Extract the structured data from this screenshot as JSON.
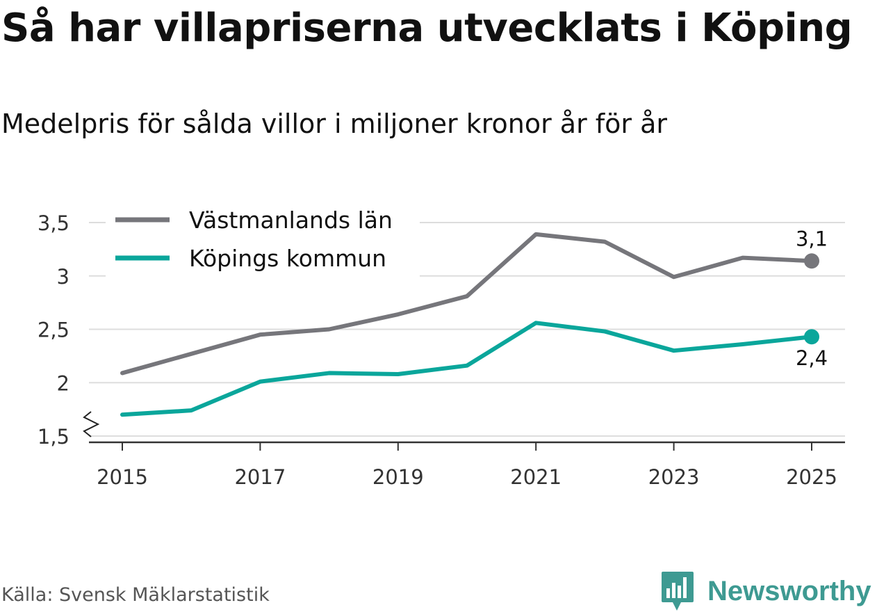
{
  "title": "Så har villapriserna utvecklats i Köping",
  "subtitle": "Medelpris för sålda villor i miljoner kronor år för år",
  "source": "Källa: Svensk Mäklarstatistik",
  "brand": {
    "name": "Newsworthy",
    "icon": "newsworthy-logo-icon"
  },
  "colors": {
    "grid": "#dddddd",
    "axis": "#333333",
    "text": "#111111",
    "brand": "#3e9a92"
  },
  "chart_data": {
    "type": "line",
    "x": [
      2015,
      2016,
      2017,
      2018,
      2019,
      2020,
      2021,
      2022,
      2023,
      2024,
      2025
    ],
    "xticks": [
      "2015",
      "2017",
      "2019",
      "2021",
      "2023",
      "2025"
    ],
    "yticks": [
      "1,5",
      "2",
      "2,5",
      "3",
      "3,5"
    ],
    "ylim": [
      1.5,
      3.5
    ],
    "xlabel": "",
    "ylabel": "",
    "axis_break": true,
    "legend_position": "top-left",
    "series": [
      {
        "name": "Västmanlands län",
        "color": "#76767b",
        "values": [
          2.09,
          2.27,
          2.45,
          2.5,
          2.64,
          2.81,
          3.39,
          3.32,
          2.99,
          3.17,
          3.14
        ],
        "end_label": "3,1",
        "end_label_position": "above"
      },
      {
        "name": "Köpings kommun",
        "color": "#0aa69b",
        "values": [
          1.7,
          1.74,
          2.01,
          2.09,
          2.08,
          2.16,
          2.56,
          2.48,
          2.3,
          2.36,
          2.43
        ],
        "end_label": "2,4",
        "end_label_position": "below"
      }
    ]
  }
}
